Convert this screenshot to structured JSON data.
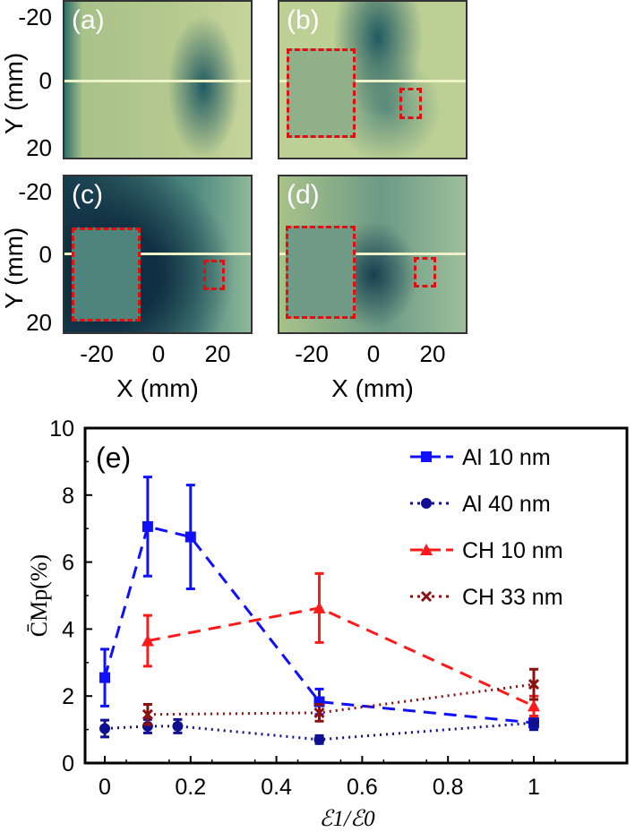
{
  "images": {
    "panels": [
      {
        "label": "(a)"
      },
      {
        "label": "(b)"
      },
      {
        "label": "(c)"
      },
      {
        "label": "(d)"
      }
    ],
    "y_axis_label": "Y (mm)",
    "x_axis_label": "X (mm)",
    "y_ticks": [
      "-20",
      "0",
      "20"
    ],
    "x_ticks": [
      "-20",
      "0",
      "20"
    ]
  },
  "chart_data": {
    "type": "line",
    "panel_label": "(e)",
    "xlabel": "ℰ1/ℰ0",
    "ylabel": "C̄Mp(%)",
    "xlim": [
      -0.05,
      1.05
    ],
    "ylim": [
      0,
      10
    ],
    "xticks": [
      0,
      0.2,
      0.4,
      0.6,
      0.8,
      1
    ],
    "xtick_labels": [
      "0",
      "0.2",
      "0.4",
      "0.6",
      "0.8",
      "1"
    ],
    "yticks": [
      0,
      2,
      4,
      6,
      8,
      10
    ],
    "ytick_labels": [
      "0",
      "2",
      "4",
      "6",
      "8",
      "10"
    ],
    "legend_position": "top-right",
    "series": [
      {
        "name": "Al 10 nm",
        "color": "#1010ff",
        "marker": "square",
        "dash": "14,9",
        "x": [
          0,
          0.1,
          0.2,
          0.5,
          1
        ],
        "y": [
          2.55,
          7.06,
          6.75,
          1.83,
          1.2
        ],
        "err": [
          0.85,
          1.48,
          1.55,
          0.38,
          0.2
        ]
      },
      {
        "name": "Al 40 nm",
        "color": "#101090",
        "marker": "circle",
        "dash": "2,5",
        "x": [
          0,
          0.1,
          0.17,
          0.5,
          1
        ],
        "y": [
          1.03,
          1.1,
          1.1,
          0.7,
          1.2
        ],
        "err": [
          0.25,
          0.2,
          0.2,
          0.12,
          0.2
        ]
      },
      {
        "name": "CH 10 nm",
        "color": "#ff1a1a",
        "marker": "triangle",
        "dash": "14,9",
        "x": [
          0.1,
          0.5,
          1
        ],
        "y": [
          3.65,
          4.63,
          1.7
        ],
        "err": [
          0.76,
          1.03,
          0.3
        ]
      },
      {
        "name": "CH 33 nm",
        "color": "#8b1010",
        "marker": "x",
        "dash": "2,5",
        "x": [
          0.1,
          0.5,
          1
        ],
        "y": [
          1.45,
          1.5,
          2.35
        ],
        "err": [
          0.3,
          0.25,
          0.45
        ]
      }
    ]
  }
}
